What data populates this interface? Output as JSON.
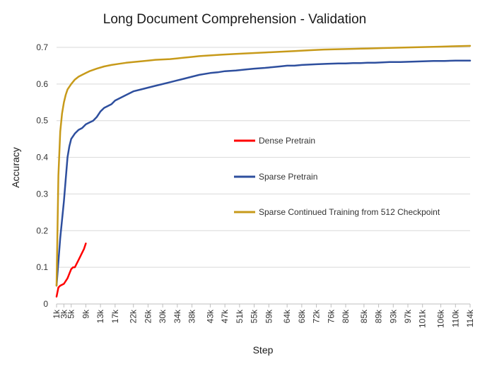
{
  "chart_data": {
    "type": "line",
    "title": "Long Document Comprehension - Validation",
    "xlabel": "Step",
    "ylabel": "Accuracy",
    "ylim": [
      0,
      0.7
    ],
    "yticks": [
      "0",
      "0.1",
      "0.2",
      "0.3",
      "0.4",
      "0.5",
      "0.6",
      "0.7"
    ],
    "xlim": [
      1,
      114
    ],
    "xticks": [
      {
        "v": 1,
        "label": "1k"
      },
      {
        "v": 3,
        "label": "3k"
      },
      {
        "v": 5,
        "label": "5k"
      },
      {
        "v": 9,
        "label": "9k"
      },
      {
        "v": 13,
        "label": "13k"
      },
      {
        "v": 17,
        "label": "17k"
      },
      {
        "v": 22,
        "label": "22k"
      },
      {
        "v": 26,
        "label": "26k"
      },
      {
        "v": 30,
        "label": "30k"
      },
      {
        "v": 34,
        "label": "34k"
      },
      {
        "v": 38,
        "label": "38k"
      },
      {
        "v": 43,
        "label": "43k"
      },
      {
        "v": 47,
        "label": "47k"
      },
      {
        "v": 51,
        "label": "51k"
      },
      {
        "v": 55,
        "label": "55k"
      },
      {
        "v": 59,
        "label": "59k"
      },
      {
        "v": 64,
        "label": "64k"
      },
      {
        "v": 68,
        "label": "68k"
      },
      {
        "v": 72,
        "label": "72k"
      },
      {
        "v": 76,
        "label": "76k"
      },
      {
        "v": 80,
        "label": "80k"
      },
      {
        "v": 85,
        "label": "85k"
      },
      {
        "v": 89,
        "label": "89k"
      },
      {
        "v": 93,
        "label": "93k"
      },
      {
        "v": 97,
        "label": "97k"
      },
      {
        "v": 101,
        "label": "101k"
      },
      {
        "v": 106,
        "label": "106k"
      },
      {
        "v": 110,
        "label": "110k"
      },
      {
        "v": 114,
        "label": "114k"
      }
    ],
    "grid": "horizontal",
    "legend_position": "center-right",
    "series": [
      {
        "name": "Dense Pretrain",
        "color": "#ff0000",
        "x": [
          1,
          1.5,
          2,
          3,
          4,
          5,
          5.5,
          6,
          7,
          7.5,
          8,
          8.5,
          9
        ],
        "y": [
          0.02,
          0.045,
          0.05,
          0.055,
          0.07,
          0.095,
          0.1,
          0.1,
          0.12,
          0.13,
          0.14,
          0.15,
          0.165
        ]
      },
      {
        "name": "Sparse Pretrain",
        "color": "#2e4f9e",
        "x": [
          1,
          2,
          3,
          4,
          4.5,
          5,
          6,
          7,
          8,
          9,
          10,
          11,
          12,
          13,
          14,
          15,
          16,
          17,
          18,
          19,
          20,
          22,
          24,
          26,
          28,
          30,
          32,
          34,
          36,
          38,
          40,
          43,
          45,
          47,
          50,
          53,
          55,
          58,
          60,
          62,
          64,
          66,
          68,
          70,
          72,
          75,
          78,
          80,
          82,
          84,
          86,
          88,
          90,
          92,
          95,
          98,
          101,
          104,
          107,
          110,
          112,
          114
        ],
        "y": [
          0.05,
          0.18,
          0.28,
          0.4,
          0.43,
          0.45,
          0.465,
          0.475,
          0.48,
          0.49,
          0.495,
          0.5,
          0.51,
          0.525,
          0.535,
          0.54,
          0.545,
          0.555,
          0.56,
          0.565,
          0.57,
          0.58,
          0.585,
          0.59,
          0.595,
          0.6,
          0.605,
          0.61,
          0.615,
          0.62,
          0.625,
          0.63,
          0.632,
          0.635,
          0.637,
          0.64,
          0.642,
          0.644,
          0.646,
          0.648,
          0.65,
          0.65,
          0.652,
          0.653,
          0.654,
          0.655,
          0.656,
          0.656,
          0.657,
          0.657,
          0.658,
          0.658,
          0.659,
          0.66,
          0.66,
          0.661,
          0.662,
          0.663,
          0.663,
          0.664,
          0.664,
          0.664
        ]
      },
      {
        "name": "Sparse Continued Training from 512 Checkpoint",
        "color": "#c79a1a",
        "x": [
          1,
          1.5,
          2,
          2.5,
          3,
          3.5,
          4,
          5,
          6,
          7,
          8,
          9,
          10,
          12,
          14,
          16,
          18,
          20,
          22,
          24,
          26,
          28,
          30,
          32,
          34,
          36,
          38,
          40,
          43,
          46,
          50,
          54,
          58,
          62,
          66,
          70,
          74,
          78,
          82,
          86,
          90,
          94,
          98,
          102,
          106,
          110,
          114
        ],
        "y": [
          0.05,
          0.35,
          0.47,
          0.52,
          0.55,
          0.57,
          0.585,
          0.6,
          0.612,
          0.62,
          0.625,
          0.63,
          0.635,
          0.642,
          0.648,
          0.652,
          0.655,
          0.658,
          0.66,
          0.662,
          0.664,
          0.666,
          0.667,
          0.668,
          0.67,
          0.672,
          0.674,
          0.676,
          0.678,
          0.68,
          0.682,
          0.684,
          0.686,
          0.688,
          0.69,
          0.692,
          0.694,
          0.695,
          0.696,
          0.697,
          0.698,
          0.699,
          0.7,
          0.701,
          0.702,
          0.703,
          0.704
        ]
      }
    ]
  }
}
